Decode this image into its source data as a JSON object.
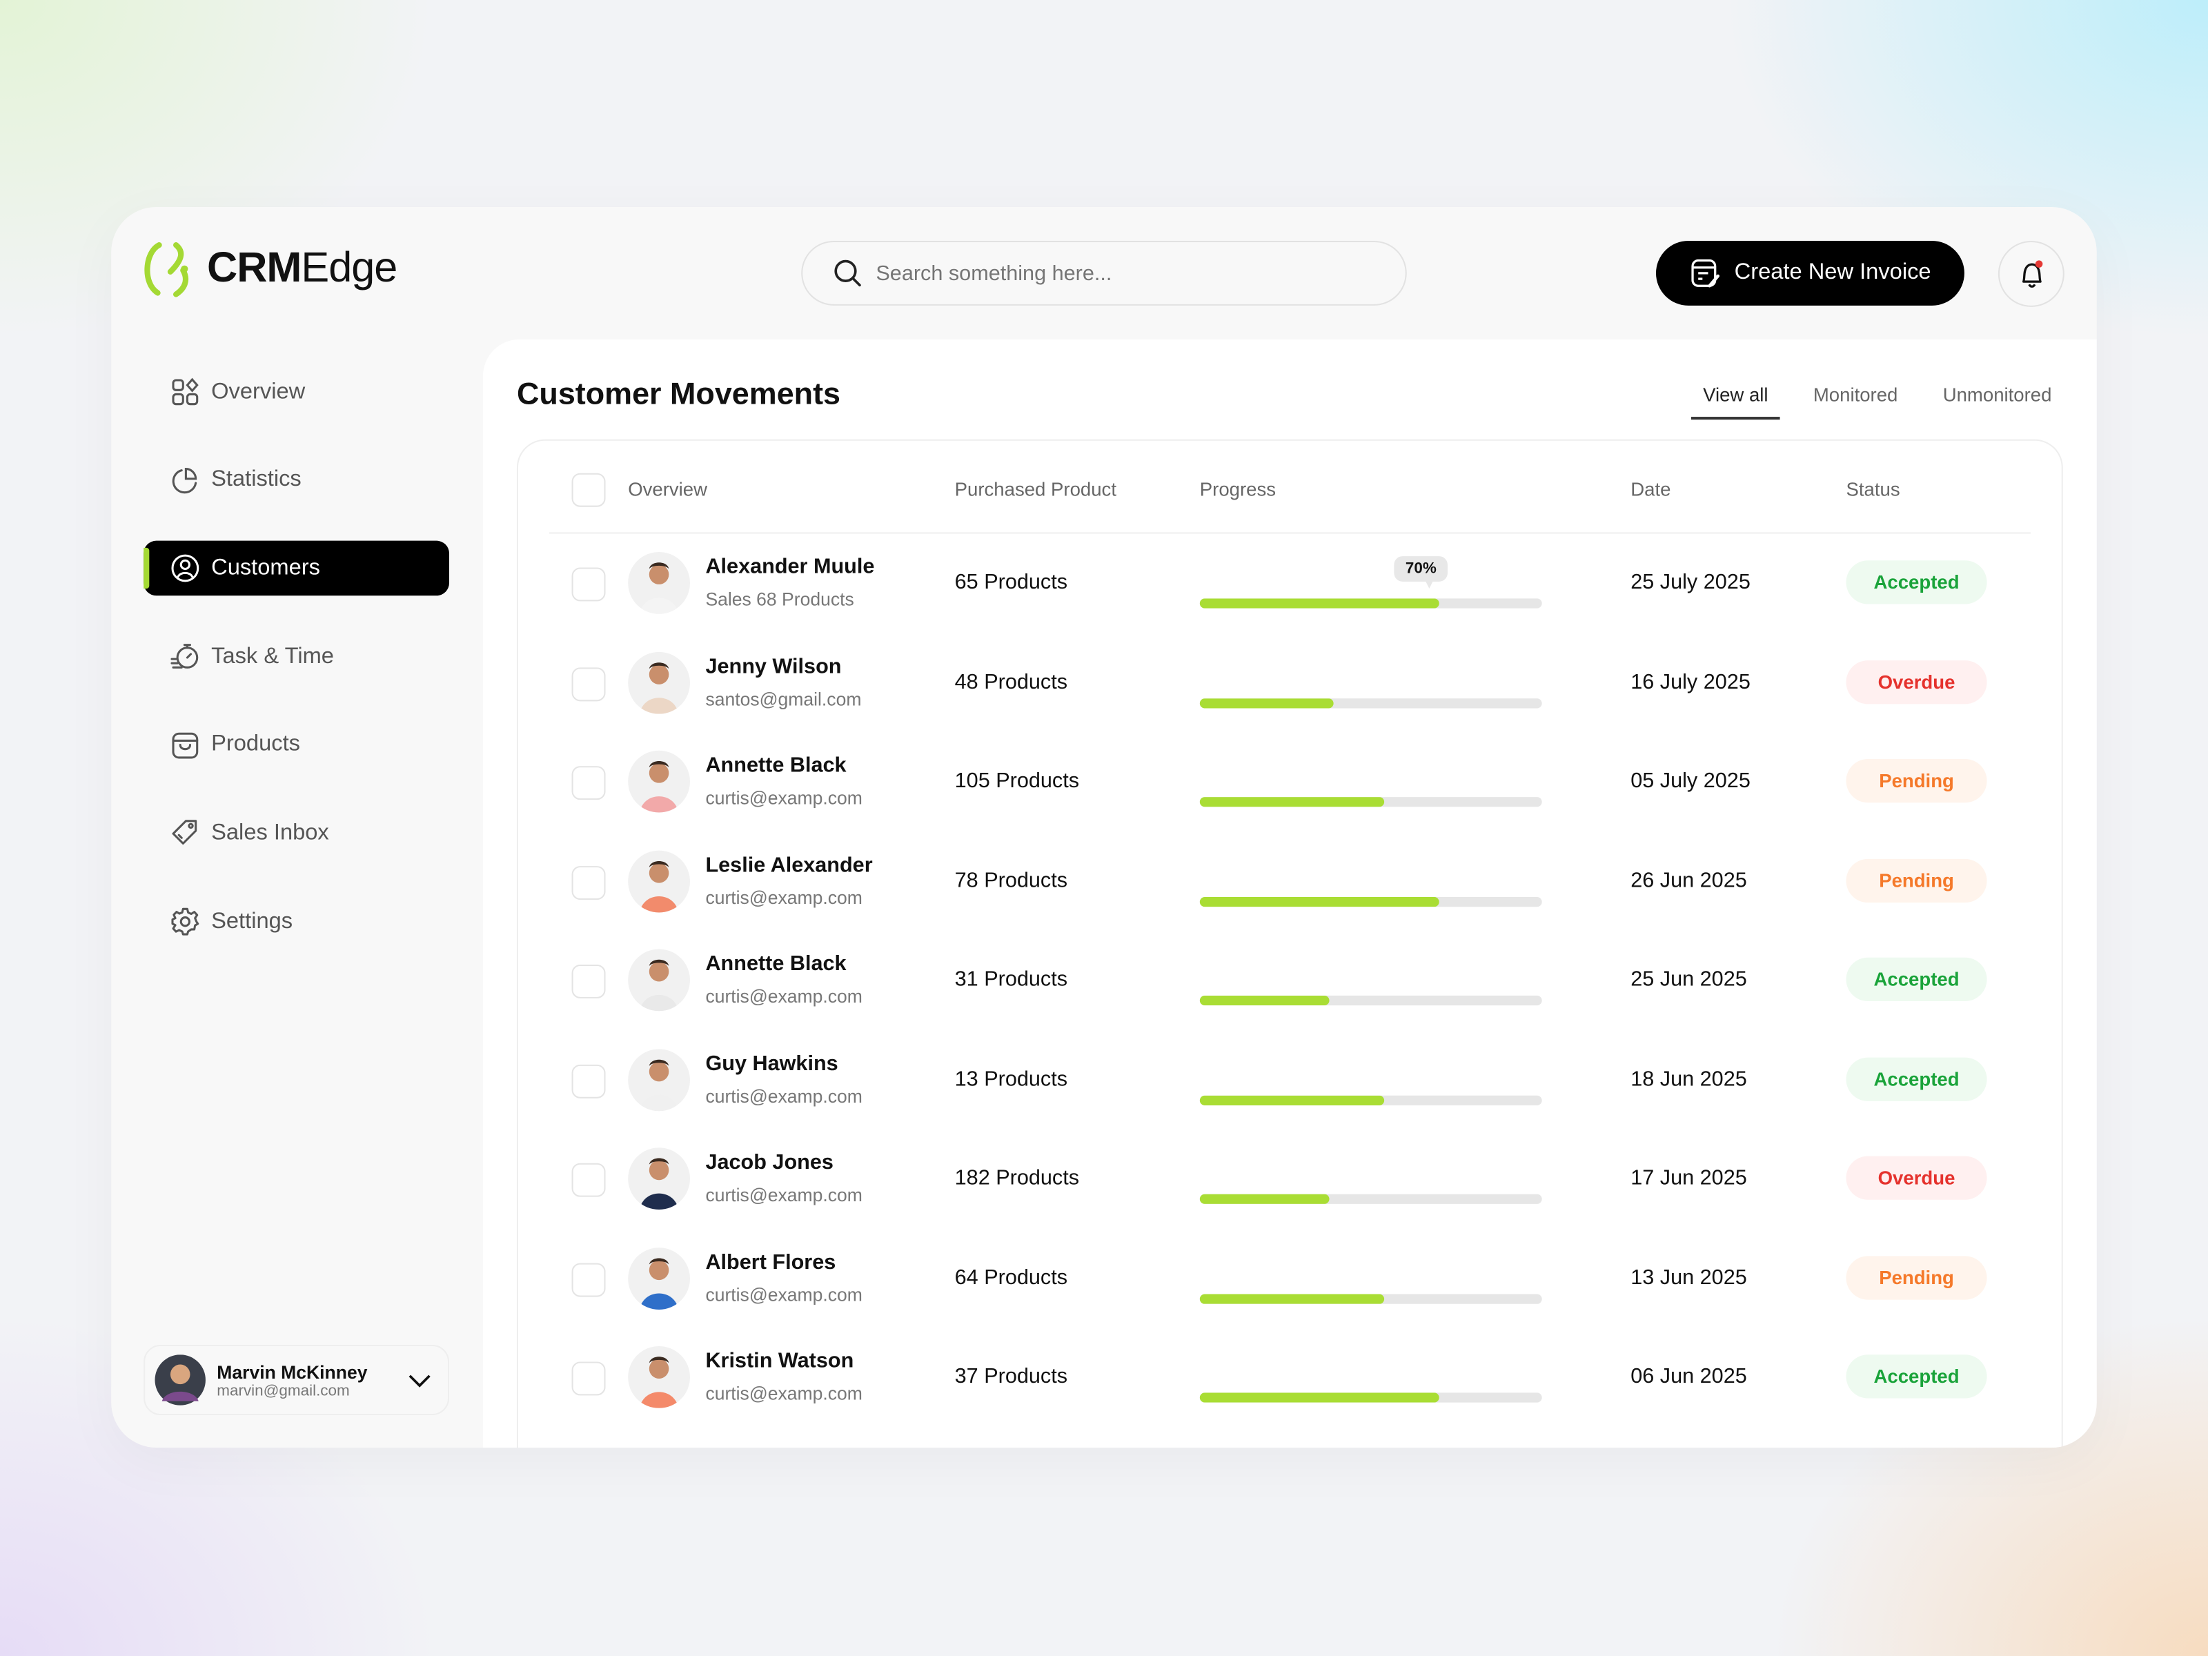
{
  "brand": {
    "name_bold": "CRM",
    "name_light": "Edge",
    "accent": "#a4d934"
  },
  "search": {
    "placeholder": "Search something here..."
  },
  "header": {
    "create_invoice_label": "Create New Invoice",
    "notification_dot": "#e53935"
  },
  "sidebar": {
    "items": [
      {
        "label": "Overview",
        "icon": "grid-icon",
        "active": false
      },
      {
        "label": "Statistics",
        "icon": "pie-chart-icon",
        "active": false
      },
      {
        "label": "Customers",
        "icon": "user-circle-icon",
        "active": true
      },
      {
        "label": "Task & Time",
        "icon": "stopwatch-icon",
        "active": false
      },
      {
        "label": "Products",
        "icon": "bag-icon",
        "active": false
      },
      {
        "label": "Sales Inbox",
        "icon": "tag-icon",
        "active": false
      },
      {
        "label": "Settings",
        "icon": "gear-icon",
        "active": false
      }
    ]
  },
  "user": {
    "name": "Marvin McKinney",
    "email": "marvin@gmail.com"
  },
  "main": {
    "title": "Customer Movements",
    "tabs": [
      {
        "label": "View all",
        "active": true
      },
      {
        "label": "Monitored",
        "active": false
      },
      {
        "label": "Unmonitored",
        "active": false
      }
    ]
  },
  "table": {
    "columns": [
      "Overview",
      "Purchased Product",
      "Progress",
      "Date",
      "Status"
    ],
    "rows": [
      {
        "name": "Alexander Muule",
        "sub": "Sales 68 Products",
        "products": "65 Products",
        "progress": 70,
        "progress_label": "70%",
        "date": "25 July 2025",
        "status": "Accepted",
        "shirt": "#f4f4f4"
      },
      {
        "name": "Jenny Wilson",
        "sub": "santos@gmail.com",
        "products": "48 Products",
        "progress": 39,
        "date": "16 July 2025",
        "status": "Overdue",
        "shirt": "#ecd7c6"
      },
      {
        "name": "Annette Black",
        "sub": "curtis@examp.com",
        "products": "105 Products",
        "progress": 54,
        "date": "05 July 2025",
        "status": "Pending",
        "shirt": "#f2a9a9"
      },
      {
        "name": "Leslie Alexander",
        "sub": "curtis@examp.com",
        "products": "78 Products",
        "progress": 70,
        "date": "26 Jun 2025",
        "status": "Pending",
        "shirt": "#f28b6c"
      },
      {
        "name": "Annette Black",
        "sub": "curtis@examp.com",
        "products": "31 Products",
        "progress": 38,
        "date": "25 Jun 2025",
        "status": "Accepted",
        "shirt": "#e9e9e9"
      },
      {
        "name": "Guy Hawkins",
        "sub": "curtis@examp.com",
        "products": "13 Products",
        "progress": 54,
        "date": "18 Jun 2025",
        "status": "Accepted",
        "shirt": "#f0f0f0"
      },
      {
        "name": "Jacob Jones",
        "sub": "curtis@examp.com",
        "products": "182 Products",
        "progress": 38,
        "date": "17 Jun 2025",
        "status": "Overdue",
        "shirt": "#1f2d4d"
      },
      {
        "name": "Albert Flores",
        "sub": "curtis@examp.com",
        "products": "64 Products",
        "progress": 54,
        "date": "13 Jun 2025",
        "status": "Pending",
        "shirt": "#2f6fc9"
      },
      {
        "name": "Kristin Watson",
        "sub": "curtis@examp.com",
        "products": "37 Products",
        "progress": 70,
        "date": "06 Jun 2025",
        "status": "Accepted",
        "shirt": "#f48a6a"
      }
    ]
  },
  "status_colors": {
    "Accepted": {
      "text": "#1aa33a",
      "bg": "#eefaf0"
    },
    "Overdue": {
      "text": "#e5322d",
      "bg": "#fff0f0"
    },
    "Pending": {
      "text": "#f5792a",
      "bg": "#fff4ec"
    }
  }
}
